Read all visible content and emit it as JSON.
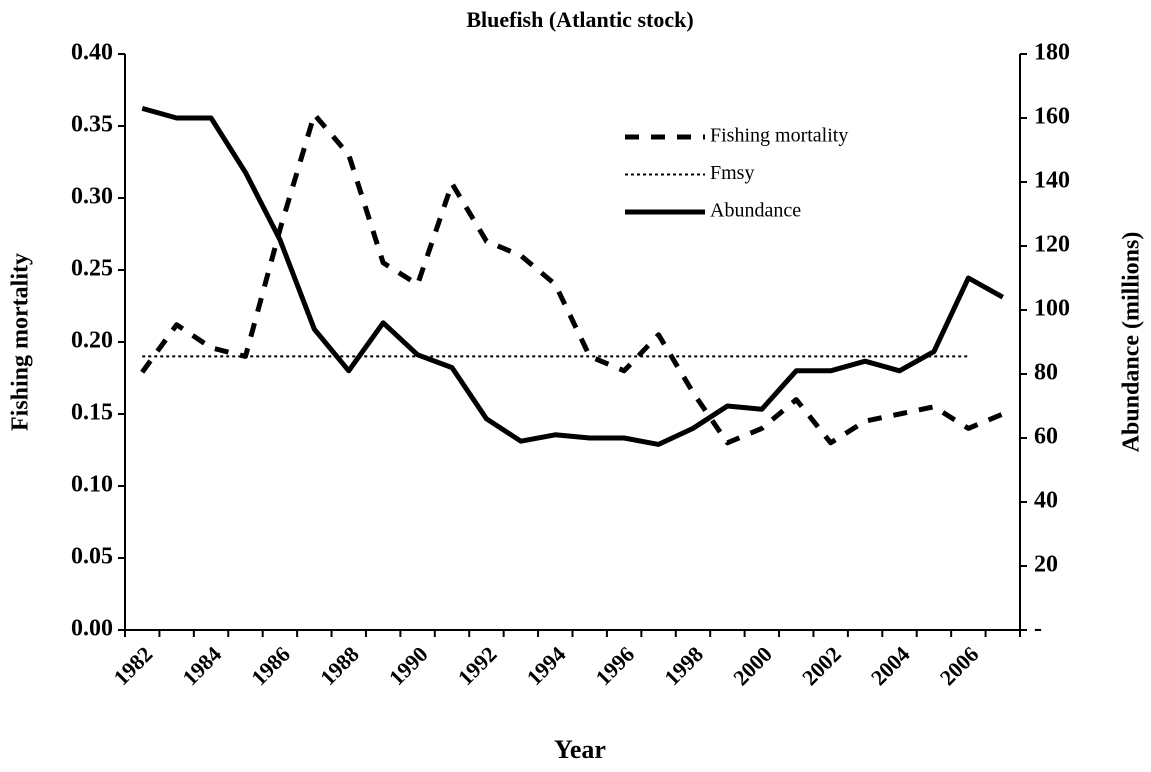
{
  "chart_data": {
    "type": "line",
    "title": "Bluefish (Atlantic stock)",
    "x_label": "Year",
    "y_label": "Fishing mortality",
    "y2_label": "Abundance (millions)",
    "categories": [
      "1982",
      null,
      "1984",
      null,
      "1986",
      null,
      "1988",
      null,
      "1990",
      null,
      "1992",
      null,
      "1994",
      null,
      "1996",
      null,
      "1998",
      null,
      "2000",
      null,
      "2002",
      null,
      "2004",
      null,
      "2006",
      null
    ],
    "series": [
      {
        "name": "Fishing mortality",
        "color": "#000000",
        "line_style": "dashed",
        "values": [
          0.179,
          0.212,
          0.196,
          0.19,
          0.278,
          0.358,
          0.33,
          0.255,
          0.24,
          0.31,
          0.27,
          0.26,
          0.24,
          0.19,
          0.18,
          0.205,
          0.165,
          0.13,
          0.14,
          0.16,
          0.13,
          0.145,
          0.15,
          0.155,
          0.14,
          0.15
        ]
      },
      {
        "name": "Fmsy",
        "color": "#000000",
        "line_style": "dotted",
        "values": [
          0.19,
          0.19,
          0.19,
          0.19,
          0.19,
          0.19,
          0.19,
          0.19,
          0.19,
          0.19,
          0.19,
          0.19,
          0.19,
          0.19,
          0.19,
          0.19,
          0.19,
          0.19,
          0.19,
          0.19,
          0.19,
          0.19,
          0.19,
          0.19,
          0.19,
          null
        ]
      },
      {
        "name": "Abundance",
        "color": "#000000",
        "line_style": "solid",
        "axis": "y2",
        "values": [
          163,
          160,
          160,
          143,
          122,
          94,
          81,
          96,
          86,
          82,
          66,
          59,
          61,
          60,
          60,
          58,
          63,
          70,
          69,
          81,
          81,
          84,
          81,
          87,
          110,
          104
        ]
      }
    ],
    "ylim": [
      0,
      0.4
    ],
    "yticks": [
      {
        "value": 0,
        "label": "0.00"
      },
      0.05,
      {
        "value": 0.1,
        "label": "0.10"
      },
      0.15,
      {
        "value": 0.2,
        "label": "0.20"
      },
      0.25,
      {
        "value": 0.3,
        "label": "0.30"
      },
      0.35,
      {
        "value": 0.4,
        "label": "0.40"
      }
    ],
    "y2lim": [
      0,
      180
    ],
    "y2ticks": [
      {
        "value": 0,
        "label": "-"
      },
      20,
      40,
      60,
      80,
      100,
      120,
      140,
      160,
      180
    ],
    "legend": "upper right",
    "grid": false
  }
}
